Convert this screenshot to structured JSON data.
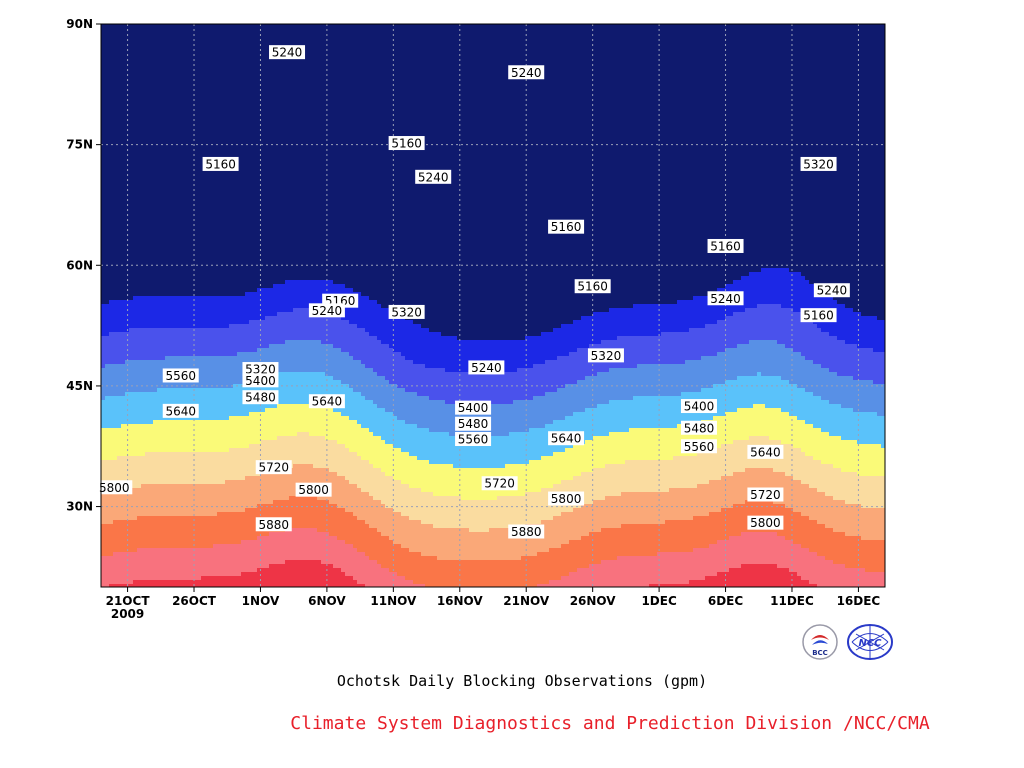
{
  "chart_data": {
    "type": "contour",
    "title": "Ochotsk Daily Blocking Observations (gpm)",
    "credit": "Climate System Diagnostics and Prediction Division /NCC/CMA",
    "x_ticks": [
      {
        "label": "21OCT",
        "sub": "2009"
      },
      {
        "label": "26OCT",
        "sub": ""
      },
      {
        "label": "1NOV",
        "sub": ""
      },
      {
        "label": "6NOV",
        "sub": ""
      },
      {
        "label": "11NOV",
        "sub": ""
      },
      {
        "label": "16NOV",
        "sub": ""
      },
      {
        "label": "21NOV",
        "sub": ""
      },
      {
        "label": "26NOV",
        "sub": ""
      },
      {
        "label": "1DEC",
        "sub": ""
      },
      {
        "label": "6DEC",
        "sub": ""
      },
      {
        "label": "11DEC",
        "sub": ""
      },
      {
        "label": "16DEC",
        "sub": ""
      }
    ],
    "y_ticks": [
      "30N",
      "45N",
      "60N",
      "75N",
      "90N"
    ],
    "xlim": [
      "2009-10-19",
      "2009-12-17"
    ],
    "ylim_deg": [
      20,
      90
    ],
    "grid": true,
    "levels": [
      5160,
      5240,
      5320,
      5400,
      5480,
      5560,
      5640,
      5720,
      5800,
      5880
    ],
    "fill_colors": [
      "#0f1a6e",
      "#1c28e6",
      "#4a52ec",
      "#5890e6",
      "#5ac2fa",
      "#fafa78",
      "#fadca0",
      "#faa878",
      "#fa7648",
      "#f8727e",
      "#ee3446"
    ],
    "contour_labels": [
      {
        "text": "5240",
        "date": "2009-11-02",
        "lat": 86.5
      },
      {
        "text": "5240",
        "date": "2009-11-20",
        "lat": 84.0
      },
      {
        "text": "5160",
        "date": "2009-11-11",
        "lat": 75.2
      },
      {
        "text": "5160",
        "date": "2009-10-28",
        "lat": 72.6
      },
      {
        "text": "5240",
        "date": "2009-11-13",
        "lat": 71.0
      },
      {
        "text": "5320",
        "date": "2009-12-12",
        "lat": 72.6
      },
      {
        "text": "5160",
        "date": "2009-11-23",
        "lat": 64.8
      },
      {
        "text": "5160",
        "date": "2009-12-05",
        "lat": 62.4
      },
      {
        "text": "5160",
        "date": "2009-11-25",
        "lat": 57.4
      },
      {
        "text": "5240",
        "date": "2009-12-13",
        "lat": 56.9
      },
      {
        "text": "5160",
        "date": "2009-11-06",
        "lat": 55.6
      },
      {
        "text": "5240",
        "date": "2009-12-05",
        "lat": 55.9
      },
      {
        "text": "5240",
        "date": "2009-11-05",
        "lat": 54.4
      },
      {
        "text": "5320",
        "date": "2009-11-11",
        "lat": 54.2
      },
      {
        "text": "5160",
        "date": "2009-12-12",
        "lat": 53.8
      },
      {
        "text": "5320",
        "date": "2009-11-26",
        "lat": 48.8
      },
      {
        "text": "5240",
        "date": "2009-11-17",
        "lat": 47.3
      },
      {
        "text": "5320",
        "date": "2009-10-31",
        "lat": 47.1
      },
      {
        "text": "5560",
        "date": "2009-10-25",
        "lat": 46.3
      },
      {
        "text": "5400",
        "date": "2009-10-31",
        "lat": 45.7
      },
      {
        "text": "5480",
        "date": "2009-10-31",
        "lat": 43.6
      },
      {
        "text": "5400",
        "date": "2009-12-03",
        "lat": 42.5
      },
      {
        "text": "5640",
        "date": "2009-11-05",
        "lat": 43.1
      },
      {
        "text": "5400",
        "date": "2009-11-16",
        "lat": 42.3
      },
      {
        "text": "5640",
        "date": "2009-10-25",
        "lat": 41.9
      },
      {
        "text": "5480",
        "date": "2009-11-16",
        "lat": 40.3
      },
      {
        "text": "5480",
        "date": "2009-12-03",
        "lat": 39.8
      },
      {
        "text": "5640",
        "date": "2009-11-23",
        "lat": 38.5
      },
      {
        "text": "5560",
        "date": "2009-11-16",
        "lat": 38.4
      },
      {
        "text": "5560",
        "date": "2009-12-03",
        "lat": 37.5
      },
      {
        "text": "5640",
        "date": "2009-12-08",
        "lat": 36.8
      },
      {
        "text": "5720",
        "date": "2009-11-01",
        "lat": 34.9
      },
      {
        "text": "5720",
        "date": "2009-11-18",
        "lat": 32.9
      },
      {
        "text": "5800",
        "date": "2009-10-20",
        "lat": 32.4
      },
      {
        "text": "5800",
        "date": "2009-11-04",
        "lat": 32.1
      },
      {
        "text": "5720",
        "date": "2009-12-08",
        "lat": 31.5
      },
      {
        "text": "5800",
        "date": "2009-11-23",
        "lat": 31.0
      },
      {
        "text": "5880",
        "date": "2009-11-01",
        "lat": 27.8
      },
      {
        "text": "5800",
        "date": "2009-12-08",
        "lat": 28.0
      },
      {
        "text": "5880",
        "date": "2009-11-20",
        "lat": 26.9
      }
    ]
  },
  "logos": {
    "left": {
      "label": "BCC",
      "icon": "bcc-logo-icon"
    },
    "right": {
      "label": "NCC",
      "icon": "ncc-logo-icon"
    }
  }
}
